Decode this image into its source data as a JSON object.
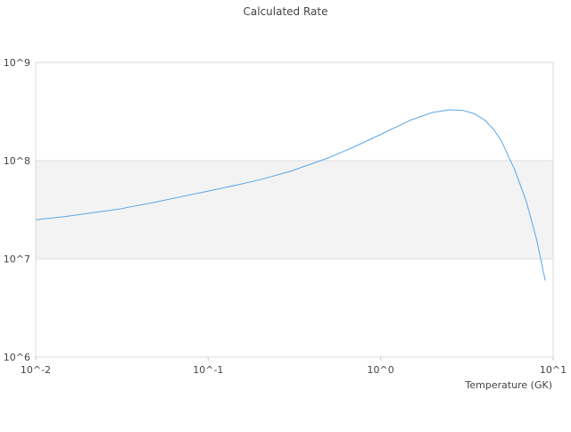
{
  "chart_data": {
    "type": "line",
    "title": "Calculated Rate",
    "xlabel": "Temperature (GK)",
    "ylabel": "",
    "x_scale": "log",
    "y_scale": "log",
    "xlim": [
      0.01,
      10
    ],
    "ylim": [
      1000000,
      1000000000
    ],
    "x_tick_labels": [
      "10^-2",
      "10^-1",
      "10^0",
      "10^1"
    ],
    "y_tick_labels": [
      "10^6",
      "10^7",
      "10^8",
      "10^9"
    ],
    "grid": true,
    "banded_background": true,
    "legend": "none",
    "series": [
      {
        "color": "#5aa5e6",
        "x": [
          0.01,
          0.015,
          0.02,
          0.03,
          0.05,
          0.07,
          0.1,
          0.15,
          0.2,
          0.3,
          0.5,
          0.7,
          1.0,
          1.5,
          2.0,
          2.5,
          3.0,
          3.5,
          4.0,
          4.5,
          5.0,
          6.0,
          7.0,
          8.0,
          9.0
        ],
        "values": [
          25000000,
          27000000,
          29000000,
          32000000,
          38000000,
          43000000,
          49000000,
          57000000,
          64000000,
          78000000,
          107000000,
          138000000,
          185000000,
          260000000,
          310000000,
          330000000,
          325000000,
          300000000,
          260000000,
          210000000,
          160000000,
          80000000,
          38000000,
          16000000,
          6000000
        ]
      }
    ]
  }
}
